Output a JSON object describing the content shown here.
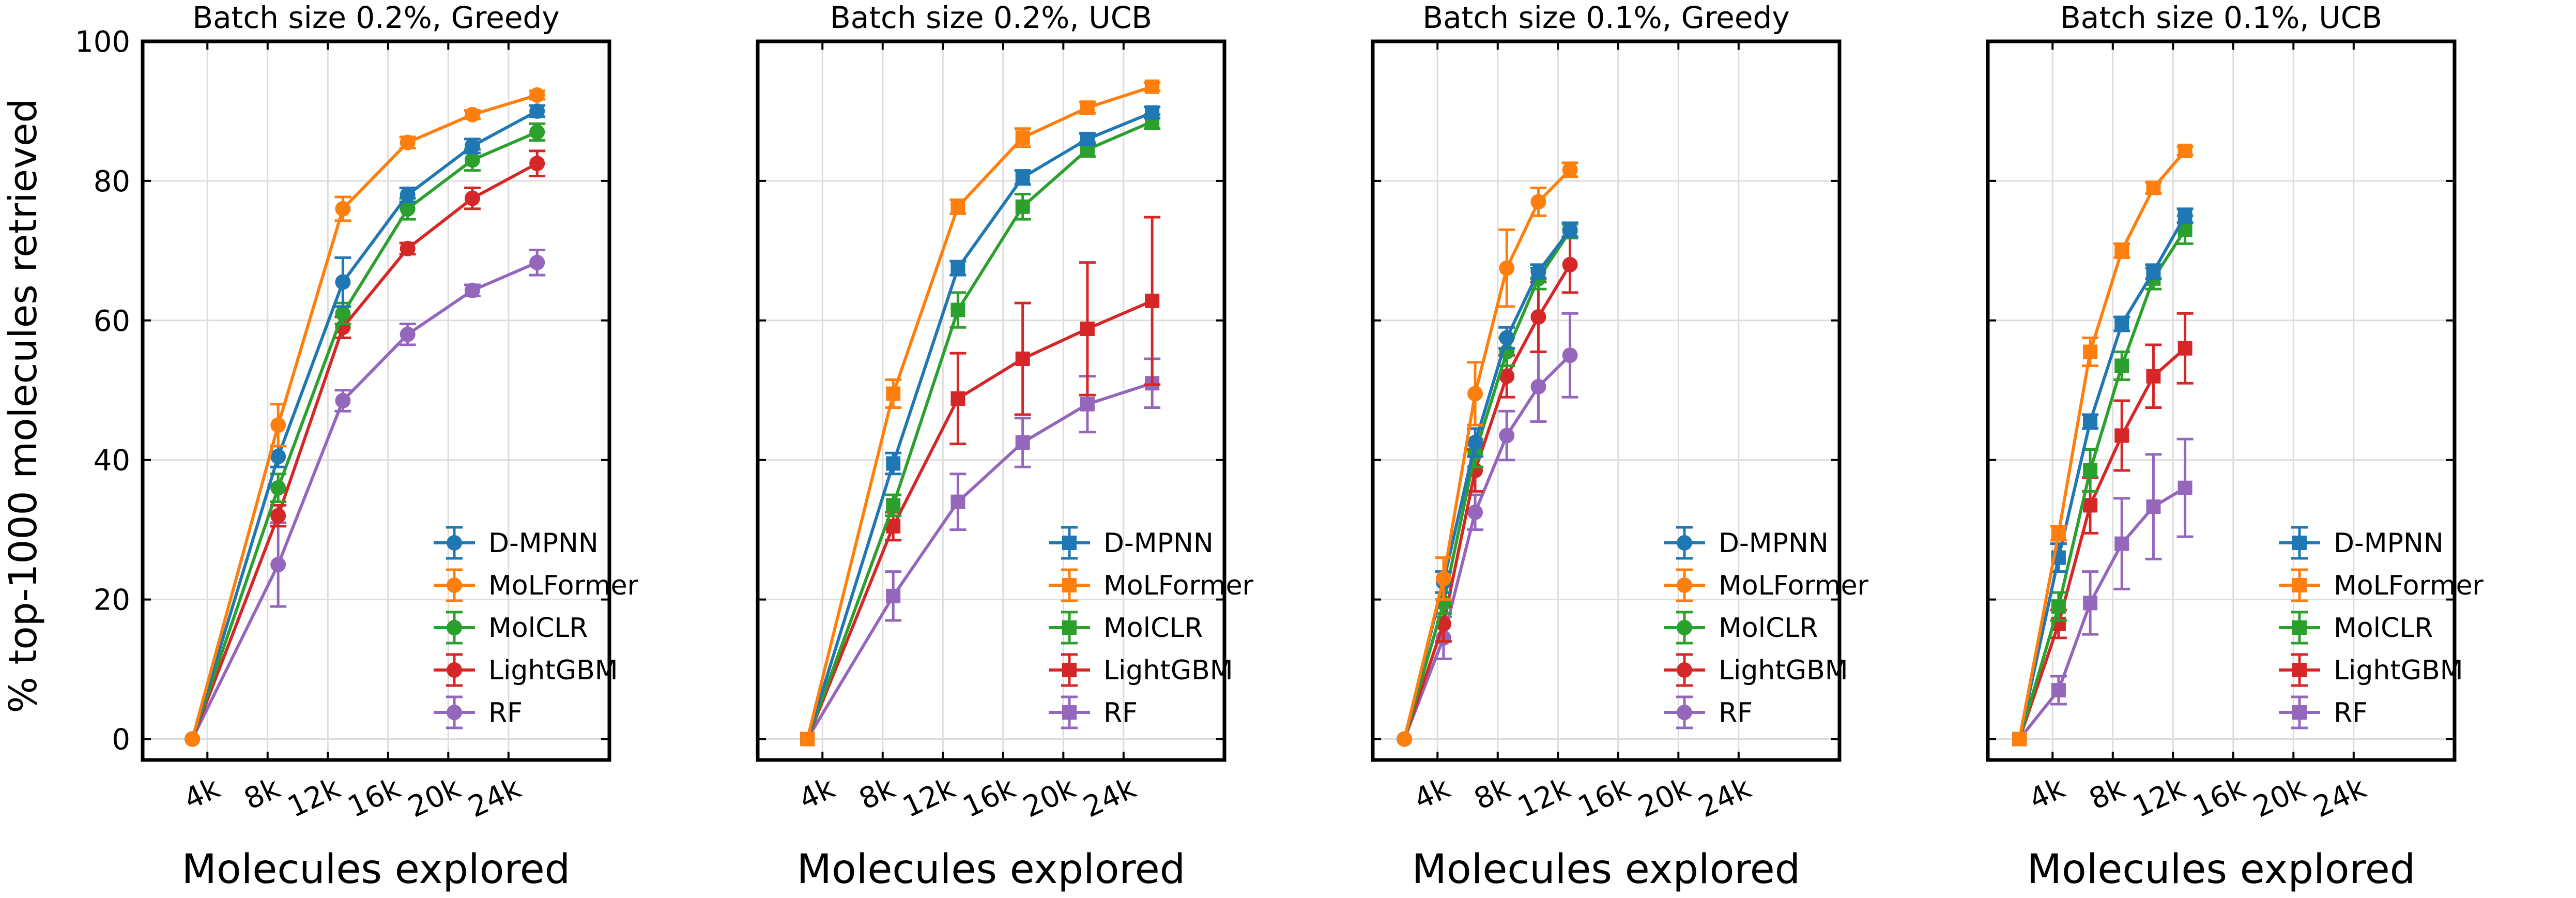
{
  "chart_data": {
    "type": "line",
    "ylabel": "% top-1000 molecules retrieved",
    "ylim": [
      -3,
      100
    ],
    "yticks": [
      0,
      20,
      40,
      60,
      80,
      100
    ],
    "x_range": [
      -300,
      30700
    ],
    "xticks": [
      4000,
      8000,
      12000,
      16000,
      20000,
      24000
    ],
    "xtick_labels": [
      "4k",
      "8k",
      "12k",
      "16k",
      "20k",
      "24k"
    ],
    "colors": {
      "D-MPNN": "#1f77b4",
      "MoLFormer": "#ff7f0e",
      "MolCLR": "#2ca02c",
      "LightGBM": "#d62728",
      "RF": "#9467bd"
    },
    "panels": [
      {
        "title": "Batch size 0.2%, Greedy",
        "xlabel": "Molecules explored",
        "marker": "circle",
        "x": [
          3000,
          8700,
          13000,
          17300,
          21600,
          25900
        ],
        "series": [
          {
            "name": "D-MPNN",
            "values": [
              0,
              40.5,
              65.5,
              78,
              85,
              90
            ],
            "errors": [
              0,
              1.5,
              3.5,
              1,
              1,
              0.8
            ]
          },
          {
            "name": "MoLFormer",
            "values": [
              0,
              45,
              76,
              85.5,
              89.5,
              92.3
            ],
            "errors": [
              0,
              3,
              1.7,
              0.8,
              0.6,
              0.6
            ]
          },
          {
            "name": "MolCLR",
            "values": [
              0,
              36,
              61,
              76,
              83,
              87
            ],
            "errors": [
              0,
              2,
              1.5,
              1.5,
              1.5,
              1.2
            ]
          },
          {
            "name": "LightGBM",
            "values": [
              0,
              32,
              59,
              70.3,
              77.5,
              82.5
            ],
            "errors": [
              0,
              1.5,
              1.5,
              0.8,
              1.5,
              1.8
            ]
          },
          {
            "name": "RF",
            "values": [
              0,
              25,
              48.5,
              58,
              64.3,
              68.3
            ],
            "errors": [
              0,
              6,
              1.5,
              1.5,
              0.8,
              1.8
            ]
          }
        ]
      },
      {
        "title": "Batch size 0.2%, UCB",
        "xlabel": "Molecules explored",
        "marker": "square",
        "x": [
          3000,
          8700,
          13000,
          17300,
          21600,
          25900
        ],
        "series": [
          {
            "name": "D-MPNN",
            "values": [
              0,
              39.5,
              67.5,
              80.5,
              86,
              89.8
            ],
            "errors": [
              0,
              1.5,
              1,
              1,
              0.8,
              0.8
            ]
          },
          {
            "name": "MoLFormer",
            "values": [
              0,
              49.5,
              76.3,
              86.2,
              90.5,
              93.5
            ],
            "errors": [
              0,
              2,
              1,
              1.3,
              0.8,
              0.6
            ]
          },
          {
            "name": "MolCLR",
            "values": [
              0,
              33.5,
              61.5,
              76.3,
              84.5,
              88.5
            ],
            "errors": [
              0,
              1.5,
              2.5,
              1.8,
              1,
              1
            ]
          },
          {
            "name": "LightGBM",
            "values": [
              0,
              30.5,
              48.8,
              54.5,
              58.8,
              62.8
            ],
            "errors": [
              0,
              2,
              6.5,
              8,
              9.5,
              12
            ]
          },
          {
            "name": "RF",
            "values": [
              0,
              20.5,
              34,
              42.5,
              48,
              51
            ],
            "errors": [
              0,
              3.5,
              4,
              3.5,
              4,
              3.5
            ]
          }
        ]
      },
      {
        "title": "Batch size 0.1%, Greedy",
        "xlabel": "Molecules explored",
        "marker": "circle",
        "x": [
          1800,
          4400,
          6500,
          8600,
          10700,
          12800
        ],
        "series": [
          {
            "name": "D-MPNN",
            "values": [
              0,
              22.5,
              42.5,
              57.5,
              67,
              73
            ],
            "errors": [
              0,
              1.5,
              2,
              1.5,
              1,
              1
            ]
          },
          {
            "name": "MoLFormer",
            "values": [
              0,
              23,
              49.5,
              67.5,
              77,
              81.6
            ],
            "errors": [
              0,
              3,
              4.5,
              5.5,
              2,
              1
            ]
          },
          {
            "name": "MolCLR",
            "values": [
              0,
              19.5,
              41,
              55.5,
              66,
              72.8
            ],
            "errors": [
              0,
              1.5,
              2,
              2,
              1.5,
              1
            ]
          },
          {
            "name": "LightGBM",
            "values": [
              0,
              16.5,
              38.5,
              52,
              60.5,
              68
            ],
            "errors": [
              0,
              2.5,
              3,
              3,
              5,
              4
            ]
          },
          {
            "name": "RF",
            "values": [
              0,
              14.5,
              32.5,
              43.5,
              50.5,
              55
            ],
            "errors": [
              0,
              3,
              2.5,
              3.5,
              5,
              6
            ]
          }
        ]
      },
      {
        "title": "Batch size 0.1%, UCB",
        "xlabel": "Molecules explored",
        "marker": "square",
        "x": [
          1800,
          4400,
          6500,
          8600,
          10700,
          12800
        ],
        "series": [
          {
            "name": "D-MPNN",
            "values": [
              0,
              26,
              45.5,
              59.5,
              67,
              75
            ],
            "errors": [
              0,
              2,
              1,
              1,
              1,
              1
            ]
          },
          {
            "name": "MoLFormer",
            "values": [
              0,
              29.5,
              55.5,
              70,
              79,
              84.3
            ],
            "errors": [
              0,
              1,
              2,
              1,
              0.8,
              0.6
            ]
          },
          {
            "name": "MolCLR",
            "values": [
              0,
              19,
              38.5,
              53.5,
              66,
              73
            ],
            "errors": [
              0,
              2,
              3,
              2,
              1.5,
              2
            ]
          },
          {
            "name": "LightGBM",
            "values": [
              0,
              16.5,
              33.5,
              43.5,
              52,
              56
            ],
            "errors": [
              0,
              2,
              4,
              5,
              4.5,
              5
            ]
          },
          {
            "name": "RF",
            "values": [
              0,
              7,
              19.5,
              28,
              33.3,
              36
            ],
            "errors": [
              0,
              2,
              4.5,
              6.5,
              7.5,
              7
            ]
          }
        ]
      }
    ]
  }
}
